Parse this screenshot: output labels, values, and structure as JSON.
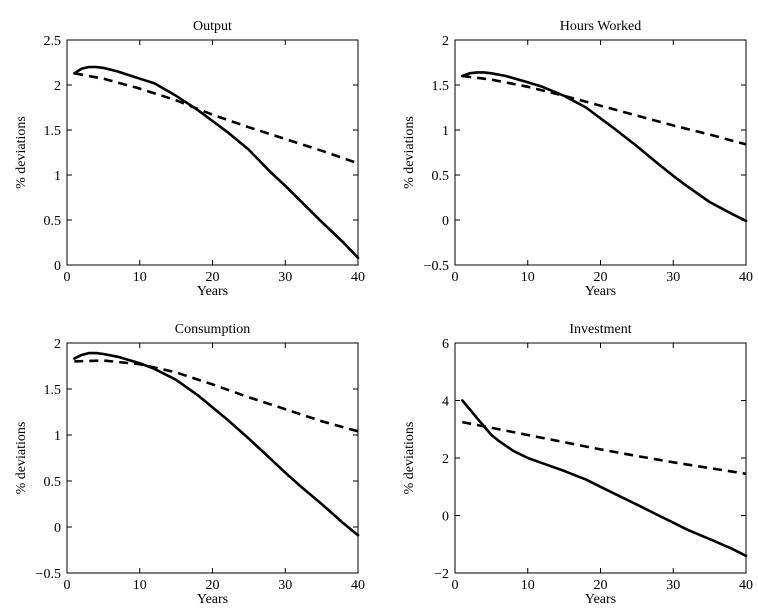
{
  "chart_data": [
    {
      "type": "line",
      "title": "Output",
      "xlabel": "Years",
      "ylabel": "% deviations",
      "xlim": [
        0,
        40
      ],
      "ylim": [
        0,
        2.5
      ],
      "xticks": [
        0,
        10,
        20,
        30,
        40
      ],
      "yticks": [
        0,
        0.5,
        1,
        1.5,
        2,
        2.5
      ],
      "xtick_labels": [
        "0",
        "10",
        "20",
        "30",
        "40"
      ],
      "ytick_labels": [
        "0",
        "0.5",
        "1",
        "1.5",
        "2",
        "2.5"
      ],
      "grid": false,
      "series": [
        {
          "style": "solid",
          "x": [
            1,
            2,
            3,
            4,
            5,
            7,
            10,
            12,
            15,
            18,
            20,
            22,
            25,
            28,
            30,
            32,
            35,
            38,
            40
          ],
          "y": [
            2.13,
            2.18,
            2.2,
            2.2,
            2.19,
            2.15,
            2.07,
            2.02,
            1.88,
            1.72,
            1.6,
            1.48,
            1.28,
            1.03,
            0.88,
            0.72,
            0.48,
            0.25,
            0.08
          ]
        },
        {
          "style": "dashed",
          "x": [
            1,
            5,
            10,
            15,
            20,
            25,
            30,
            35,
            40
          ],
          "y": [
            2.13,
            2.07,
            1.96,
            1.83,
            1.67,
            1.53,
            1.4,
            1.27,
            1.13
          ]
        }
      ]
    },
    {
      "type": "line",
      "title": "Hours Worked",
      "xlabel": "Years",
      "ylabel": "% deviations",
      "xlim": [
        0,
        40
      ],
      "ylim": [
        -0.5,
        2
      ],
      "xticks": [
        0,
        10,
        20,
        30,
        40
      ],
      "yticks": [
        -0.5,
        0,
        0.5,
        1,
        1.5,
        2
      ],
      "xtick_labels": [
        "0",
        "10",
        "20",
        "30",
        "40"
      ],
      "ytick_labels": [
        "−0.5",
        "0",
        "0.5",
        "1",
        "1.5",
        "2"
      ],
      "grid": false,
      "series": [
        {
          "style": "solid",
          "x": [
            1,
            2,
            3,
            4,
            5,
            7,
            10,
            12,
            15,
            18,
            20,
            22,
            25,
            28,
            30,
            32,
            35,
            38,
            40
          ],
          "y": [
            1.6,
            1.63,
            1.64,
            1.64,
            1.63,
            1.6,
            1.53,
            1.48,
            1.38,
            1.25,
            1.13,
            1.01,
            0.82,
            0.62,
            0.49,
            0.37,
            0.2,
            0.07,
            -0.01
          ]
        },
        {
          "style": "dashed",
          "x": [
            1,
            5,
            10,
            15,
            20,
            25,
            30,
            35,
            40
          ],
          "y": [
            1.6,
            1.56,
            1.48,
            1.38,
            1.27,
            1.16,
            1.05,
            0.95,
            0.84
          ]
        }
      ]
    },
    {
      "type": "line",
      "title": "Consumption",
      "xlabel": "Years",
      "ylabel": "% deviations",
      "xlim": [
        0,
        40
      ],
      "ylim": [
        -0.5,
        2
      ],
      "xticks": [
        0,
        10,
        20,
        30,
        40
      ],
      "yticks": [
        -0.5,
        0,
        0.5,
        1,
        1.5,
        2
      ],
      "xtick_labels": [
        "0",
        "10",
        "20",
        "30",
        "40"
      ],
      "ytick_labels": [
        "−0.5",
        "0",
        "0.5",
        "1",
        "1.5",
        "2"
      ],
      "grid": false,
      "series": [
        {
          "style": "solid",
          "x": [
            1,
            2,
            3,
            4,
            5,
            7,
            10,
            12,
            15,
            18,
            20,
            22,
            25,
            28,
            30,
            32,
            35,
            38,
            40
          ],
          "y": [
            1.83,
            1.87,
            1.89,
            1.89,
            1.88,
            1.85,
            1.78,
            1.72,
            1.6,
            1.43,
            1.3,
            1.17,
            0.96,
            0.74,
            0.59,
            0.45,
            0.25,
            0.04,
            -0.09
          ]
        },
        {
          "style": "dashed",
          "x": [
            1,
            5,
            10,
            15,
            20,
            25,
            30,
            35,
            40
          ],
          "y": [
            1.8,
            1.81,
            1.77,
            1.68,
            1.55,
            1.41,
            1.28,
            1.15,
            1.04
          ]
        }
      ]
    },
    {
      "type": "line",
      "title": "Investment",
      "xlabel": "Years",
      "ylabel": "% deviations",
      "xlim": [
        0,
        40
      ],
      "ylim": [
        -2,
        6
      ],
      "xticks": [
        0,
        10,
        20,
        30,
        40
      ],
      "yticks": [
        -2,
        0,
        2,
        4,
        6
      ],
      "xtick_labels": [
        "0",
        "10",
        "20",
        "30",
        "40"
      ],
      "ytick_labels": [
        "−2",
        "0",
        "2",
        "4",
        "6"
      ],
      "grid": false,
      "series": [
        {
          "style": "solid",
          "x": [
            1,
            2,
            3,
            4,
            5,
            6,
            8,
            10,
            12,
            15,
            18,
            20,
            22,
            25,
            28,
            30,
            32,
            35,
            38,
            40
          ],
          "y": [
            4.0,
            3.7,
            3.4,
            3.1,
            2.8,
            2.6,
            2.25,
            2.0,
            1.82,
            1.55,
            1.25,
            1.0,
            0.75,
            0.38,
            0.0,
            -0.25,
            -0.5,
            -0.82,
            -1.15,
            -1.4
          ]
        },
        {
          "style": "dashed",
          "x": [
            1,
            5,
            10,
            15,
            20,
            25,
            30,
            35,
            40
          ],
          "y": [
            3.25,
            3.05,
            2.8,
            2.55,
            2.3,
            2.07,
            1.85,
            1.65,
            1.45
          ]
        }
      ]
    }
  ]
}
